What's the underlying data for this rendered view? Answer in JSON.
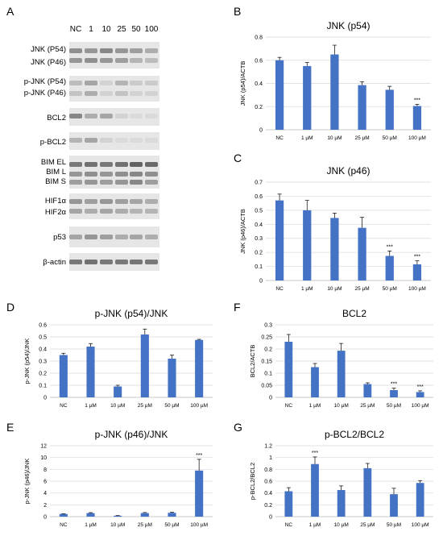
{
  "panel_letters": [
    "A",
    "B",
    "C",
    "D",
    "E",
    "F",
    "G"
  ],
  "blot": {
    "lane_labels": [
      "NC",
      "1",
      "10",
      "25",
      "50",
      "100"
    ],
    "rows": [
      {
        "labels": [
          "JNK (P54)",
          "JNK (P46)"
        ],
        "bands": 2
      },
      {
        "labels": [
          "p-JNK (P54)",
          "p-JNK (P46)"
        ],
        "bands": 2
      },
      {
        "labels": [
          "BCL2"
        ],
        "bands": 1
      },
      {
        "labels": [
          "p-BCL2"
        ],
        "bands": 1
      },
      {
        "labels": [
          "BIM EL",
          "BIM L",
          "BIM S"
        ],
        "bands": 3
      },
      {
        "labels": [
          "HIF1α",
          "HIF2α"
        ],
        "bands": 2
      },
      {
        "labels": [
          "p53"
        ],
        "bands": 1
      },
      {
        "labels": [
          "β-actin"
        ],
        "bands": 1
      }
    ]
  },
  "chart_data": [
    {
      "panel": "B",
      "type": "bar",
      "title": "JNK (p54)",
      "ylabel": "JNK (p54)/ACTB",
      "categories": [
        "NC",
        "1 µM",
        "10 µM",
        "25 µM",
        "50 µM",
        "100 µM"
      ],
      "values": [
        0.6,
        0.55,
        0.65,
        0.385,
        0.345,
        0.205
      ],
      "errors": [
        0.025,
        0.03,
        0.08,
        0.03,
        0.03,
        0.015
      ],
      "significance": [
        "",
        "",
        "",
        "",
        "",
        "***"
      ],
      "ylim": [
        0,
        0.8
      ],
      "yticks": [
        "0",
        "0.2",
        "0.4",
        "0.6",
        "0.8"
      ],
      "ytick_values": [
        0,
        0.2,
        0.4,
        0.6,
        0.8
      ],
      "grid": true,
      "color": "#4472c4"
    },
    {
      "panel": "C",
      "type": "bar",
      "title": "JNK (p46)",
      "ylabel": "JNK (p46)/ACTB",
      "categories": [
        "NC",
        "1 µM",
        "10 µM",
        "25 µM",
        "50 µM",
        "100 µM"
      ],
      "values": [
        0.57,
        0.5,
        0.445,
        0.375,
        0.175,
        0.115
      ],
      "errors": [
        0.045,
        0.07,
        0.035,
        0.075,
        0.035,
        0.025
      ],
      "significance": [
        "",
        "",
        "",
        "",
        "***",
        "***"
      ],
      "ylim": [
        0,
        0.7
      ],
      "yticks": [
        "0",
        "0.1",
        "0.2",
        "0.3",
        "0.4",
        "0.5",
        "0.6",
        "0.7"
      ],
      "ytick_values": [
        0,
        0.1,
        0.2,
        0.3,
        0.4,
        0.5,
        0.6,
        0.7
      ],
      "grid": true,
      "color": "#4472c4"
    },
    {
      "panel": "D",
      "type": "bar",
      "title": "p-JNK (p54)/JNK",
      "ylabel": "p-JNK (p54)/JNK",
      "categories": [
        "NC",
        "1 µM",
        "10 µM",
        "25 µM",
        "50 µM",
        "100 µM"
      ],
      "values": [
        0.35,
        0.42,
        0.09,
        0.52,
        0.32,
        0.475
      ],
      "errors": [
        0.015,
        0.025,
        0.01,
        0.045,
        0.03,
        0.005
      ],
      "significance": [
        "",
        "",
        "",
        "",
        "",
        ""
      ],
      "ylim": [
        0,
        0.6
      ],
      "yticks": [
        "0",
        "0.1",
        "0.2",
        "0.3",
        "0.4",
        "0.5",
        "0.6"
      ],
      "ytick_values": [
        0,
        0.1,
        0.2,
        0.3,
        0.4,
        0.5,
        0.6
      ],
      "grid": true,
      "color": "#4472c4"
    },
    {
      "panel": "E",
      "type": "bar",
      "title": "p-JNK (p46)/JNK",
      "ylabel": "p-JNK (p46)/JNK",
      "categories": [
        "NC",
        "1 µM",
        "10 µM",
        "25 µM",
        "50 µM",
        "100 µM"
      ],
      "values": [
        0.45,
        0.6,
        0.15,
        0.6,
        0.65,
        7.8
      ],
      "errors": [
        0.05,
        0.08,
        0.03,
        0.1,
        0.1,
        1.9
      ],
      "significance": [
        "",
        "",
        "",
        "",
        "",
        "***"
      ],
      "ylim": [
        0,
        12
      ],
      "yticks": [
        "0",
        "2",
        "4",
        "6",
        "8",
        "10",
        "12"
      ],
      "ytick_values": [
        0,
        2,
        4,
        6,
        8,
        10,
        12
      ],
      "grid": true,
      "color": "#4472c4"
    },
    {
      "panel": "F",
      "type": "bar",
      "title": "BCL2",
      "ylabel": "BCL2/ACTB",
      "categories": [
        "NC",
        "1 µM",
        "10 µM",
        "25 µM",
        "50 µM",
        "100 µM"
      ],
      "values": [
        0.23,
        0.125,
        0.193,
        0.055,
        0.03,
        0.022
      ],
      "errors": [
        0.03,
        0.015,
        0.03,
        0.005,
        0.008,
        0.005
      ],
      "significance": [
        "",
        "",
        "",
        "",
        "***",
        "***"
      ],
      "ylim": [
        0,
        0.3
      ],
      "yticks": [
        "0",
        "0.05",
        "0.1",
        "0.15",
        "0.2",
        "0.25",
        "0.3"
      ],
      "ytick_values": [
        0,
        0.05,
        0.1,
        0.15,
        0.2,
        0.25,
        0.3
      ],
      "grid": true,
      "color": "#4472c4"
    },
    {
      "panel": "G",
      "type": "bar",
      "title": "p-BCL2/BCL2",
      "ylabel": "p-BCL2/BCL2",
      "categories": [
        "NC",
        "1 µM",
        "10 µM",
        "25 µM",
        "50 µM",
        "100 µM"
      ],
      "values": [
        0.43,
        0.89,
        0.45,
        0.82,
        0.38,
        0.57
      ],
      "errors": [
        0.06,
        0.12,
        0.07,
        0.08,
        0.1,
        0.04
      ],
      "significance": [
        "",
        "***",
        "",
        "",
        "",
        ""
      ],
      "ylim": [
        0,
        1.2
      ],
      "yticks": [
        "0",
        "0.2",
        "0.4",
        "0.6",
        "0.8",
        "1",
        "1.2"
      ],
      "ytick_values": [
        0,
        0.2,
        0.4,
        0.6,
        0.8,
        1,
        1.2
      ],
      "grid": true,
      "color": "#4472c4"
    }
  ]
}
